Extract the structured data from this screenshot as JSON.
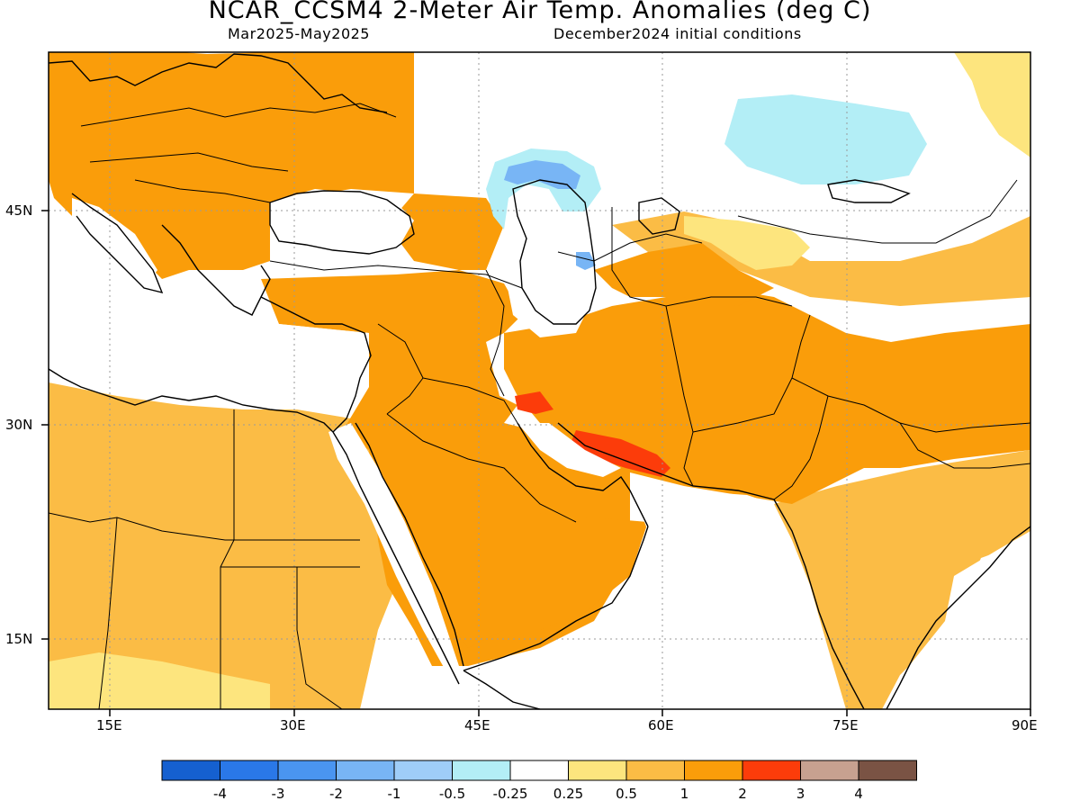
{
  "title": "NCAR_CCSM4 2-Meter Air Temp. Anomalies (deg C)",
  "subtitle_left": "Mar2025-May2025",
  "subtitle_right": "December2024 initial conditions",
  "map": {
    "lon_range": [
      10,
      90
    ],
    "lat_range": [
      10,
      56
    ],
    "lat_labels": [
      "45N",
      "30N",
      "15N"
    ],
    "lon_labels": [
      "15E",
      "30E",
      "45E",
      "60E",
      "75E",
      "90E"
    ],
    "gridlines": "dotted"
  },
  "colorbar": {
    "ticks": [
      "-4",
      "-3",
      "-2",
      "-1",
      "-0.5",
      "-0.25",
      "0.25",
      "0.5",
      "1",
      "2",
      "3",
      "4"
    ],
    "colors": [
      "#1560d0",
      "#2a78e8",
      "#4a95f0",
      "#78b5f5",
      "#9fcdf8",
      "#b3eef6",
      "#ffffff",
      "#fde57e",
      "#fbbc45",
      "#fa9d0a",
      "#fc3c0a",
      "#c7a190",
      "#7a5344"
    ]
  }
}
